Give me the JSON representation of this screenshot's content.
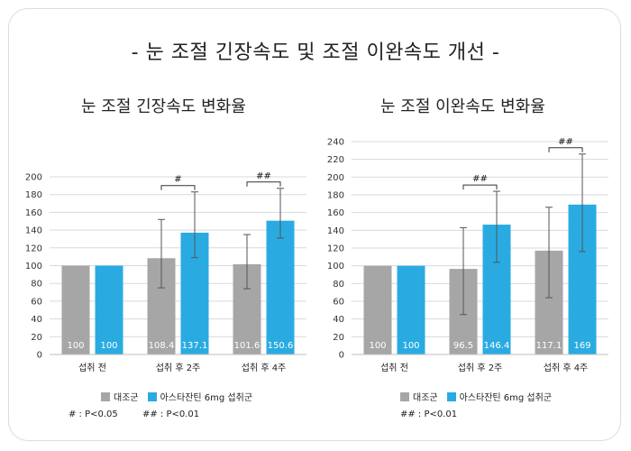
{
  "title": "- 눈 조절 긴장속도 및 조절 이완속도 개선 -",
  "legend": {
    "placebo": "대조군",
    "treatment": "아스타잔틴 6mg 섭취군"
  },
  "colors": {
    "placebo": "#a6a6a6",
    "treatment": "#29abe2"
  },
  "chart_data": [
    {
      "type": "bar",
      "title": "눈 조절 긴장속도 변화율",
      "categories": [
        "섭취 전",
        "섭취 후 2주",
        "섭취 후 4주"
      ],
      "ylim": [
        0,
        200
      ],
      "yticks": [
        0,
        20,
        40,
        60,
        80,
        100,
        120,
        140,
        160,
        180,
        200
      ],
      "grid": true,
      "series": [
        {
          "name": "대조군",
          "values": [
            100,
            108.4,
            101.6
          ],
          "labels": [
            "100",
            "108.4",
            "101.6"
          ],
          "err_low": [
            null,
            75,
            74
          ],
          "err_high": [
            null,
            152,
            135
          ]
        },
        {
          "name": "아스타잔틴 6mg 섭취군",
          "values": [
            100,
            137.1,
            150.6
          ],
          "labels": [
            "100",
            "137.1",
            "150.6"
          ],
          "err_low": [
            null,
            109,
            131
          ],
          "err_high": [
            null,
            183,
            187
          ]
        }
      ],
      "significance": [
        null,
        "#",
        "##"
      ],
      "footnotes": [
        "# : P<0.05",
        "## : P<0.01"
      ]
    },
    {
      "type": "bar",
      "title": "눈 조절 이완속도 변화율",
      "categories": [
        "섭취 전",
        "섭취 후 2주",
        "섭취 후 4주"
      ],
      "ylim": [
        0,
        240
      ],
      "yticks": [
        0,
        20,
        40,
        60,
        80,
        100,
        120,
        140,
        160,
        180,
        200,
        220,
        240
      ],
      "grid": true,
      "series": [
        {
          "name": "대조군",
          "values": [
            100,
            96.5,
            117.1
          ],
          "labels": [
            "100",
            "96.5",
            "117.1"
          ],
          "err_low": [
            null,
            45,
            64
          ],
          "err_high": [
            null,
            143,
            166
          ]
        },
        {
          "name": "아스타잔틴 6mg 섭취군",
          "values": [
            100,
            146.4,
            169
          ],
          "labels": [
            "100",
            "146.4",
            "169"
          ],
          "err_low": [
            null,
            104,
            116
          ],
          "err_high": [
            null,
            184,
            226
          ]
        }
      ],
      "significance": [
        null,
        "##",
        "##"
      ],
      "footnotes": [
        "## : P<0.01"
      ]
    }
  ]
}
